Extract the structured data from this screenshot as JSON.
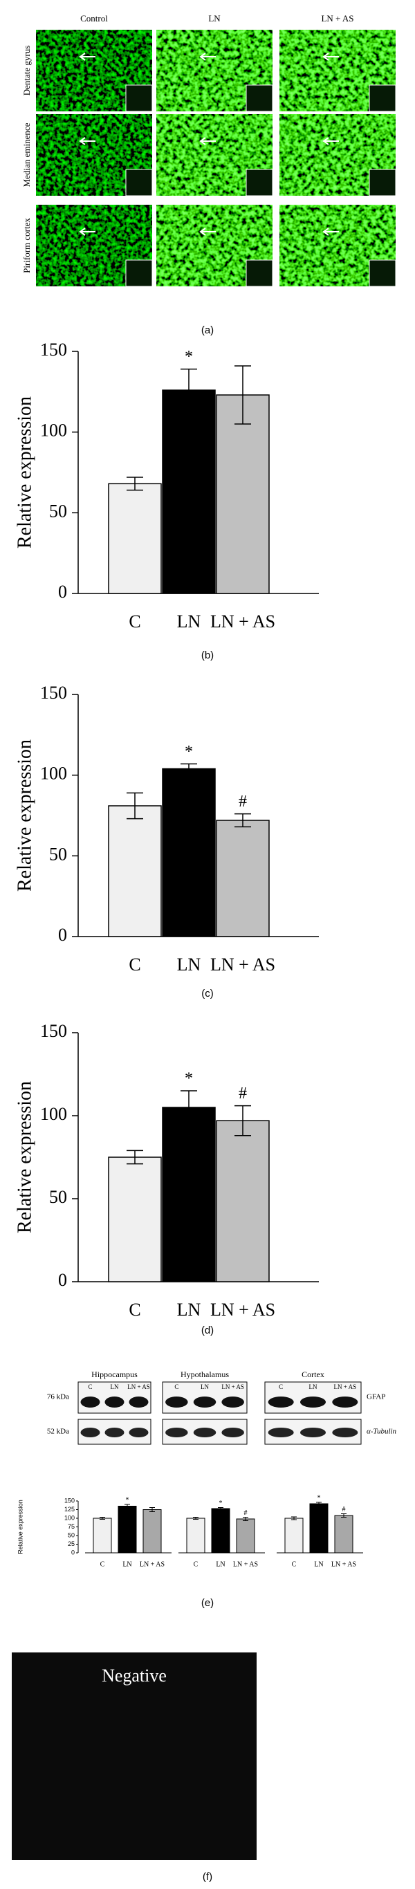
{
  "figure_a": {
    "columns": [
      "Control",
      "LN",
      "LN + AS"
    ],
    "rows": [
      "Dentate gyrus",
      "Median eminence",
      "Piriform cortex"
    ],
    "caption": "(a)"
  },
  "chart_data": [
    {
      "type": "bar",
      "caption": "(b)",
      "ylabel": "Relative expression",
      "categories": [
        "C",
        "LN",
        "LN + AS"
      ],
      "values": [
        68,
        126,
        123
      ],
      "errors": [
        4,
        13,
        18
      ],
      "markers": [
        null,
        "*",
        null
      ],
      "colors": [
        "#f0f0f0",
        "#000000",
        "#c0c0c0"
      ],
      "ylim": [
        0,
        150
      ],
      "yticks": [
        0,
        50,
        100,
        150
      ]
    },
    {
      "type": "bar",
      "caption": "(c)",
      "ylabel": "Relative expression",
      "categories": [
        "C",
        "LN",
        "LN + AS"
      ],
      "values": [
        81,
        104,
        72
      ],
      "errors": [
        8,
        3,
        4
      ],
      "markers": [
        null,
        "*",
        "#"
      ],
      "colors": [
        "#f0f0f0",
        "#000000",
        "#c0c0c0"
      ],
      "ylim": [
        0,
        150
      ],
      "yticks": [
        0,
        50,
        100,
        150
      ]
    },
    {
      "type": "bar",
      "caption": "(d)",
      "ylabel": "Relative expression",
      "categories": [
        "C",
        "LN",
        "LN + AS"
      ],
      "values": [
        75,
        105,
        97
      ],
      "errors": [
        4,
        10,
        9
      ],
      "markers": [
        null,
        "*",
        "#"
      ],
      "colors": [
        "#f0f0f0",
        "#000000",
        "#c0c0c0"
      ],
      "ylim": [
        0,
        150
      ],
      "yticks": [
        0,
        50,
        100,
        150
      ]
    },
    {
      "type": "grouped_bar",
      "caption": "(e)",
      "ylabel": "Relative expression",
      "categories": [
        "C",
        "LN",
        "LN + AS"
      ],
      "colors": [
        "#f0f0f0",
        "#000000",
        "#a8a8a8"
      ],
      "ylim": [
        0,
        150
      ],
      "yticks": [
        0,
        25,
        50,
        75,
        100,
        125,
        150
      ],
      "groups": [
        {
          "name": "Hippocampus",
          "values": [
            100,
            135,
            125
          ],
          "errors": [
            3,
            5,
            6
          ],
          "markers": [
            null,
            "*",
            null
          ]
        },
        {
          "name": "Hypothalamus",
          "values": [
            100,
            128,
            98
          ],
          "errors": [
            3,
            3,
            5
          ],
          "markers": [
            null,
            "*",
            "#"
          ]
        },
        {
          "name": "Cortex",
          "values": [
            100,
            142,
            108
          ],
          "errors": [
            4,
            4,
            5
          ],
          "markers": [
            null,
            "*",
            "#"
          ]
        }
      ]
    }
  ],
  "blots": {
    "sizes": [
      "76 kDa",
      "52 kDa"
    ],
    "proteins": [
      "GFAP",
      "α-Tubulin"
    ]
  },
  "negative": {
    "label": "Negative",
    "caption": "(f)"
  }
}
